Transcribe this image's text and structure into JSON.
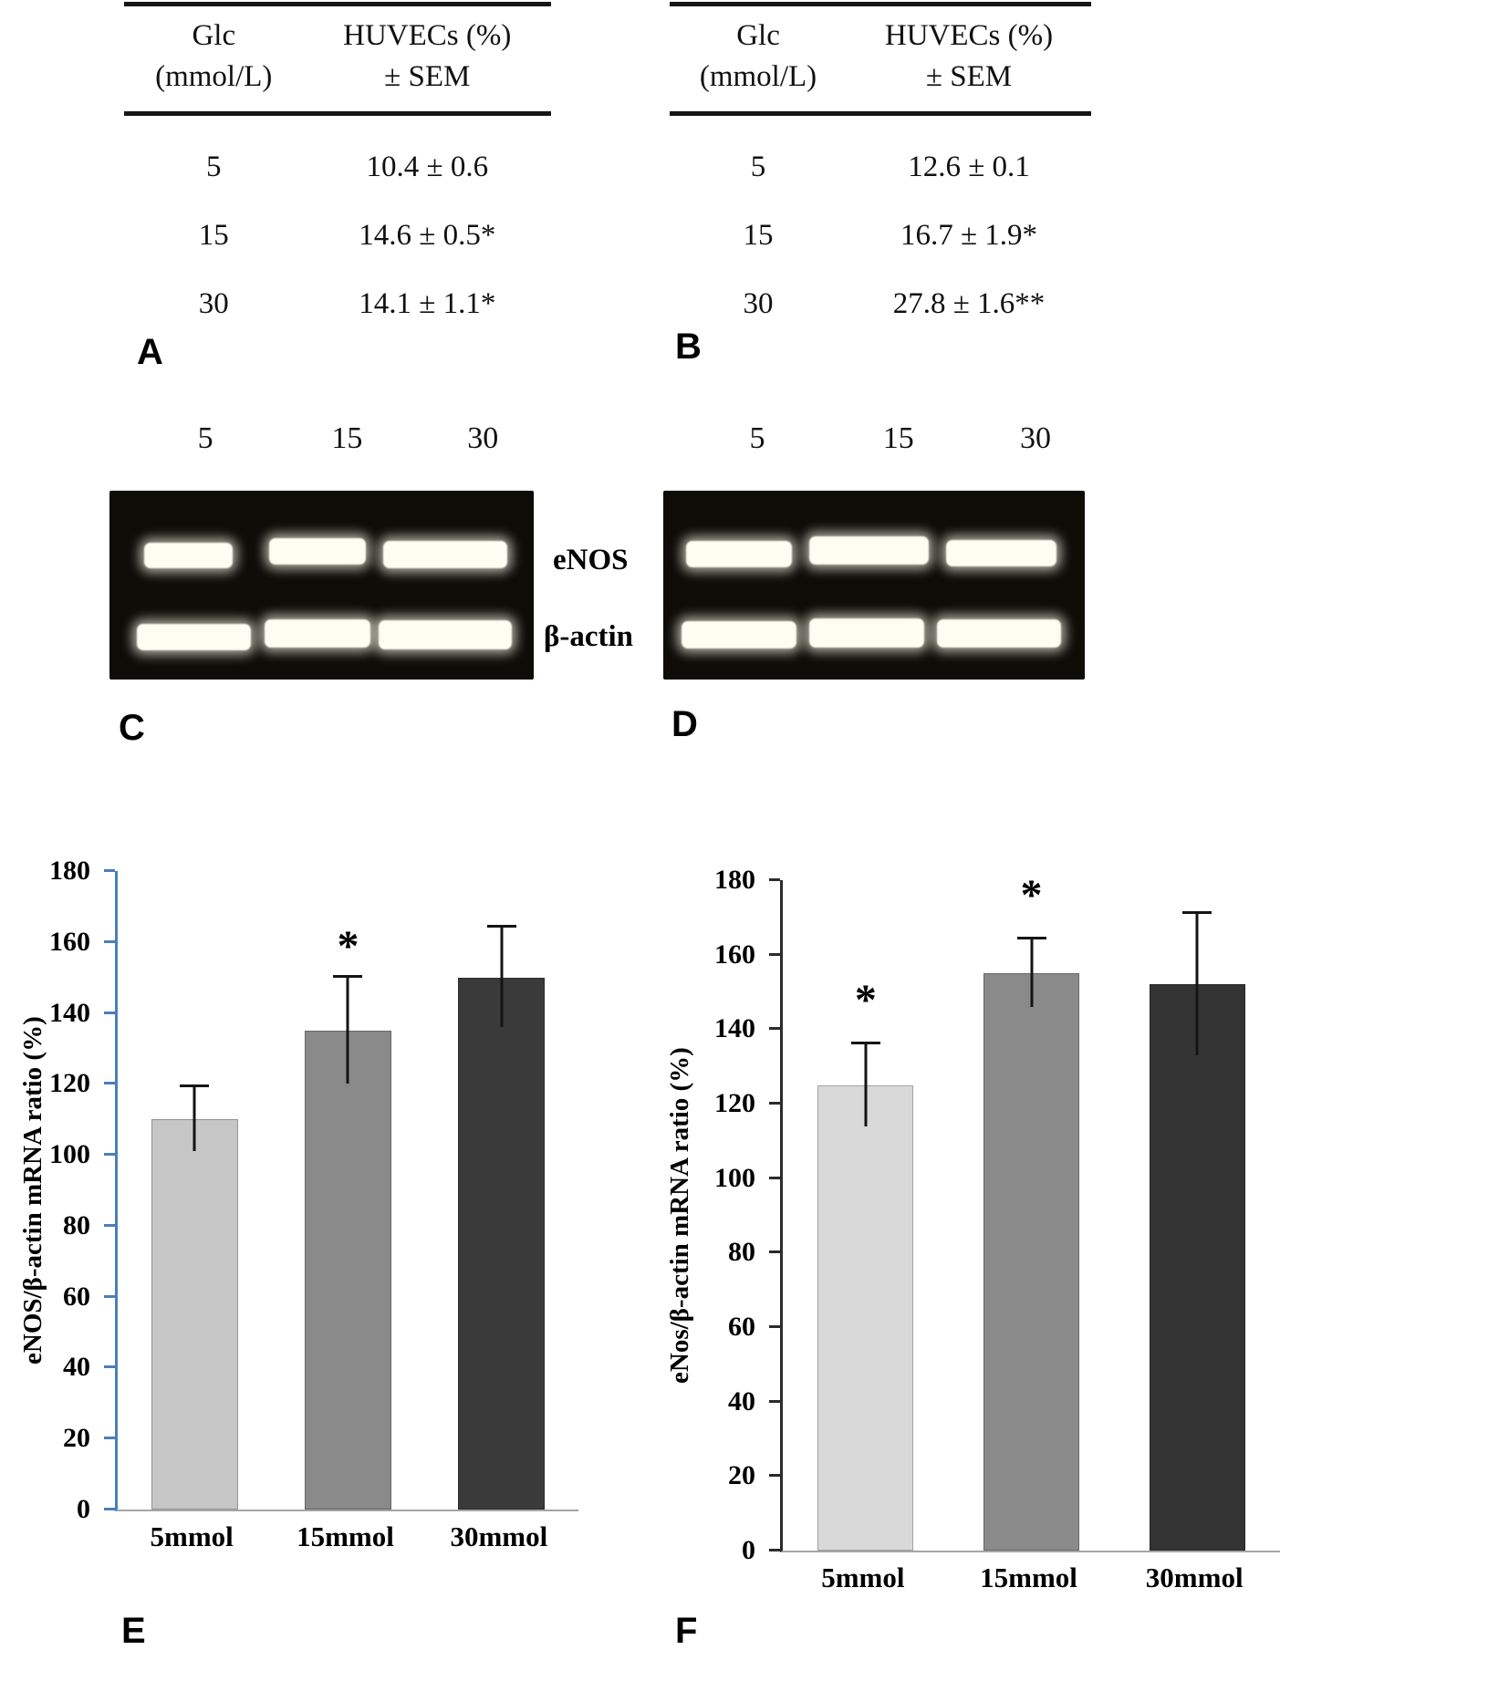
{
  "panel_labels": {
    "a": "A",
    "b": "B",
    "c": "C",
    "d": "D",
    "e": "E",
    "f": "F"
  },
  "tables": {
    "a": {
      "col1_line1": "Glc",
      "col1_line2": "(mmol/L)",
      "col2_line1": "HUVECs (%)",
      "col2_line2": "± SEM",
      "rows": [
        [
          "5",
          "10.4 ± 0.6"
        ],
        [
          "15",
          "14.6 ± 0.5*"
        ],
        [
          "30",
          "14.1 ± 1.1*"
        ]
      ]
    },
    "b": {
      "col1_line1": "Glc",
      "col1_line2": "(mmol/L)",
      "col2_line1": "HUVECs (%)",
      "col2_line2": "± SEM",
      "rows": [
        [
          "5",
          "12.6 ± 0.1"
        ],
        [
          "15",
          "16.7 ± 1.9*"
        ],
        [
          "30",
          "27.8 ± 1.6**"
        ]
      ]
    }
  },
  "gels": {
    "c": {
      "lanes": [
        "5",
        "15",
        "30"
      ]
    },
    "d": {
      "lanes": [
        "5",
        "15",
        "30"
      ]
    },
    "band_labels": [
      "eNOS",
      "β-actin"
    ]
  },
  "chart_data": [
    {
      "type": "bar",
      "panel": "E",
      "categories": [
        "5mmol",
        "15mmol",
        "30mmol"
      ],
      "values": [
        110,
        135,
        150
      ],
      "errors": [
        9,
        15,
        14
      ],
      "annotations": [
        "",
        "*",
        ""
      ],
      "title": "",
      "xlabel": "",
      "ylabel": "eNOS/β-actin mRNA ratio (%)",
      "ylim": [
        0,
        180
      ],
      "ytick_step": 20,
      "grid": "off",
      "legend": "none",
      "bar_colors": [
        "#c6c6c6",
        "#8a8a8a",
        "#3a3a3a"
      ],
      "axis_color": "#4a7ebb",
      "baseline_color": "#a6a6a6"
    },
    {
      "type": "bar",
      "panel": "F",
      "categories": [
        "5mmol",
        "15mmol",
        "30mmol"
      ],
      "values": [
        125,
        155,
        152
      ],
      "errors": [
        11,
        9,
        19
      ],
      "annotations": [
        "*",
        "*",
        ""
      ],
      "title": "",
      "xlabel": "",
      "ylabel": "eNos/β-actin mRNA ratio (%)",
      "ylim": [
        0,
        180
      ],
      "ytick_step": 20,
      "grid": "off",
      "legend": "none",
      "bar_colors": [
        "#d9d9d9",
        "#8a8a8a",
        "#333333"
      ],
      "axis_color": "#2b2b2b",
      "baseline_color": "#a6a6a6"
    }
  ]
}
